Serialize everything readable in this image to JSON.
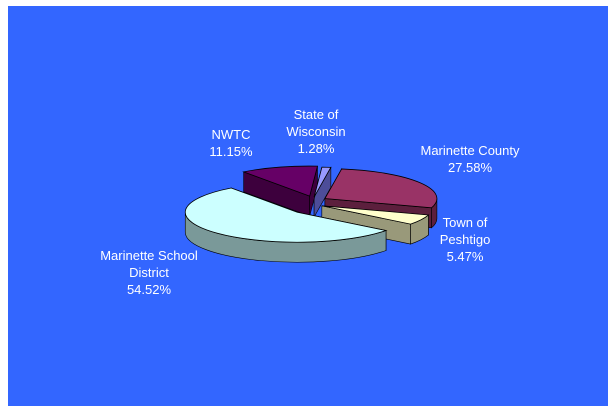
{
  "chart_data": {
    "type": "pie",
    "style": "3d-exploded",
    "background": "#3366ff",
    "slices": [
      {
        "label": [
          "State of",
          "Wisconsin",
          "1.28%"
        ],
        "name": "State of Wisconsin",
        "value": 1.28,
        "top_color": "#9999ff",
        "side_color": "#4d4d99"
      },
      {
        "label": [
          "Marinette County",
          "27.58%"
        ],
        "name": "Marinette County",
        "value": 27.58,
        "top_color": "#993366",
        "side_color": "#5c1f3d"
      },
      {
        "label": [
          "Town of",
          "Peshtigo",
          "5.47%"
        ],
        "name": "Town of Peshtigo",
        "value": 5.47,
        "top_color": "#ffffcc",
        "side_color": "#99997a"
      },
      {
        "label": [
          "Marinette School",
          "District",
          "54.52%"
        ],
        "name": "Marinette School District",
        "value": 54.52,
        "top_color": "#ccffff",
        "side_color": "#7a9999"
      },
      {
        "label": [
          "NWTC",
          "11.15%"
        ],
        "name": "NWTC",
        "value": 11.15,
        "top_color": "#660066",
        "side_color": "#3d003d"
      }
    ]
  }
}
